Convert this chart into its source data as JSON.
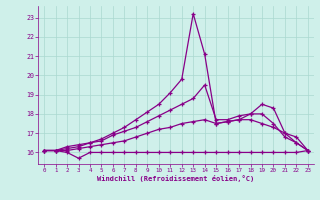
{
  "title": "",
  "xlabel": "Windchill (Refroidissement éolien,°C)",
  "bg_color": "#cff0ea",
  "grid_color": "#aad8d0",
  "line_color": "#880088",
  "xlim": [
    -0.5,
    23.5
  ],
  "ylim": [
    15.4,
    23.6
  ],
  "yticks": [
    16,
    17,
    18,
    19,
    20,
    21,
    22,
    23
  ],
  "xticks": [
    0,
    1,
    2,
    3,
    4,
    5,
    6,
    7,
    8,
    9,
    10,
    11,
    12,
    13,
    14,
    15,
    16,
    17,
    18,
    19,
    20,
    21,
    22,
    23
  ],
  "series": [
    [
      16.1,
      16.1,
      16.0,
      15.7,
      16.0,
      16.0,
      16.0,
      16.0,
      16.0,
      16.0,
      16.0,
      16.0,
      16.0,
      16.0,
      16.0,
      16.0,
      16.0,
      16.0,
      16.0,
      16.0,
      16.0,
      16.0,
      16.0,
      16.1
    ],
    [
      16.1,
      16.1,
      16.1,
      16.2,
      16.3,
      16.4,
      16.5,
      16.6,
      16.8,
      17.0,
      17.2,
      17.3,
      17.5,
      17.6,
      17.7,
      17.5,
      17.6,
      17.7,
      17.7,
      17.5,
      17.3,
      17.0,
      16.5,
      16.1
    ],
    [
      16.1,
      16.1,
      16.3,
      16.4,
      16.5,
      16.6,
      16.9,
      17.1,
      17.3,
      17.6,
      17.9,
      18.2,
      18.5,
      18.8,
      19.5,
      17.7,
      17.7,
      17.9,
      18.0,
      18.0,
      17.5,
      16.8,
      16.5,
      16.1
    ],
    [
      16.1,
      16.1,
      16.2,
      16.3,
      16.5,
      16.7,
      17.0,
      17.3,
      17.7,
      18.1,
      18.5,
      19.1,
      19.8,
      23.2,
      21.1,
      17.5,
      17.6,
      17.7,
      18.0,
      18.5,
      18.3,
      17.0,
      16.8,
      16.1
    ]
  ]
}
